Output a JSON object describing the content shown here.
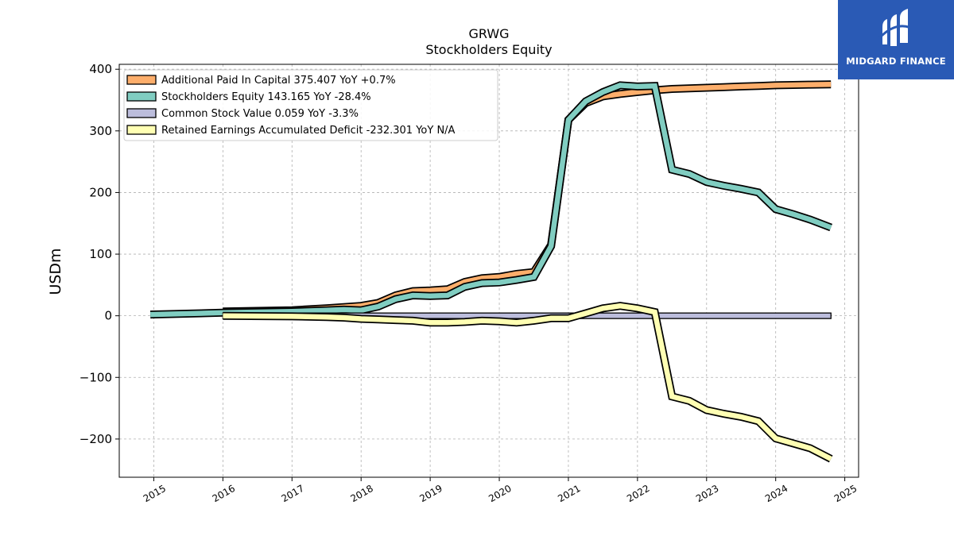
{
  "brand": {
    "name": "MIDGARD FINANCE"
  },
  "chart_data": {
    "type": "line",
    "title": "GRWG",
    "subtitle": "Stockholders  Equity",
    "ylabel": "USDm",
    "xlabel": "",
    "ylim": [
      -262,
      408
    ],
    "xlim": [
      2014.5,
      2025.2
    ],
    "yticks": [
      400,
      300,
      200,
      100,
      0,
      -100,
      -200
    ],
    "ytick_labels": [
      "400",
      "300",
      "200",
      "100",
      "0",
      "−100",
      "−200"
    ],
    "xticks": [
      2015,
      2016,
      2017,
      2018,
      2019,
      2020,
      2021,
      2022,
      2023,
      2024,
      2025
    ],
    "xtick_labels": [
      "2015",
      "2016",
      "2017",
      "2018",
      "2019",
      "2020",
      "2021",
      "2022",
      "2023",
      "2024",
      "2025"
    ],
    "grid": true,
    "legend_position": "top-left",
    "series": [
      {
        "name": "Additional Paid In Capital  375.407 YoY +0.7%",
        "color": "#fdae6b",
        "style": "band",
        "points": [
          [
            2016.0,
            7
          ],
          [
            2017.0,
            9
          ],
          [
            2017.5,
            12
          ],
          [
            2017.75,
            14
          ],
          [
            2018.0,
            16
          ],
          [
            2018.25,
            21
          ],
          [
            2018.5,
            33
          ],
          [
            2018.75,
            40
          ],
          [
            2019.0,
            41
          ],
          [
            2019.25,
            43
          ],
          [
            2019.5,
            55
          ],
          [
            2019.75,
            61
          ],
          [
            2020.0,
            63
          ],
          [
            2020.25,
            68
          ],
          [
            2020.5,
            71
          ],
          [
            2020.75,
            115
          ],
          [
            2021.0,
            318
          ],
          [
            2021.25,
            345
          ],
          [
            2021.5,
            356
          ],
          [
            2021.75,
            360
          ],
          [
            2022.0,
            363
          ],
          [
            2022.25,
            366
          ],
          [
            2022.5,
            368
          ],
          [
            2022.75,
            369
          ],
          [
            2023.0,
            370
          ],
          [
            2023.25,
            371
          ],
          [
            2023.5,
            372
          ],
          [
            2023.75,
            373
          ],
          [
            2024.0,
            374
          ],
          [
            2024.25,
            374.5
          ],
          [
            2024.5,
            375
          ],
          [
            2024.8,
            375.4
          ]
        ]
      },
      {
        "name": "Stockholders Equity  143.165 YoY -28.4%",
        "color": "#80cdc1",
        "style": "band",
        "points": [
          [
            2014.95,
            2
          ],
          [
            2016.0,
            5
          ],
          [
            2017.0,
            7
          ],
          [
            2017.5,
            9
          ],
          [
            2017.75,
            10
          ],
          [
            2018.0,
            9
          ],
          [
            2018.25,
            15
          ],
          [
            2018.5,
            27
          ],
          [
            2018.75,
            33
          ],
          [
            2019.0,
            32
          ],
          [
            2019.25,
            33
          ],
          [
            2019.5,
            47
          ],
          [
            2019.75,
            53
          ],
          [
            2020.0,
            54
          ],
          [
            2020.25,
            58
          ],
          [
            2020.5,
            63
          ],
          [
            2020.75,
            113
          ],
          [
            2021.0,
            318
          ],
          [
            2021.25,
            348
          ],
          [
            2021.5,
            363
          ],
          [
            2021.75,
            374
          ],
          [
            2022.0,
            372
          ],
          [
            2022.25,
            373
          ],
          [
            2022.5,
            237
          ],
          [
            2022.75,
            230
          ],
          [
            2023.0,
            217
          ],
          [
            2023.25,
            211
          ],
          [
            2023.5,
            206
          ],
          [
            2023.75,
            200
          ],
          [
            2024.0,
            173
          ],
          [
            2024.25,
            165
          ],
          [
            2024.5,
            156
          ],
          [
            2024.8,
            143.2
          ]
        ]
      },
      {
        "name": "Common Stock Value  0.059 YoY -3.3%",
        "color": "#bcbddc",
        "style": "fill",
        "points": [
          [
            2016.0,
            0.06
          ],
          [
            2024.8,
            0.059
          ]
        ]
      },
      {
        "name": "Retained Earnings Accumulated Deficit  -232.301 YoY N/A",
        "color": "#ffffb3",
        "style": "band",
        "points": [
          [
            2016.0,
            0
          ],
          [
            2017.0,
            -1
          ],
          [
            2017.5,
            -2
          ],
          [
            2017.75,
            -3
          ],
          [
            2018.0,
            -5
          ],
          [
            2018.25,
            -6
          ],
          [
            2018.5,
            -7
          ],
          [
            2018.75,
            -8
          ],
          [
            2019.0,
            -11
          ],
          [
            2019.25,
            -11
          ],
          [
            2019.5,
            -10
          ],
          [
            2019.75,
            -8
          ],
          [
            2020.0,
            -9
          ],
          [
            2020.25,
            -11
          ],
          [
            2020.5,
            -8
          ],
          [
            2020.75,
            -4
          ],
          [
            2021.0,
            -4
          ],
          [
            2021.25,
            4
          ],
          [
            2021.5,
            12
          ],
          [
            2021.75,
            16
          ],
          [
            2022.0,
            12
          ],
          [
            2022.25,
            6
          ],
          [
            2022.5,
            -131
          ],
          [
            2022.75,
            -138
          ],
          [
            2023.0,
            -153
          ],
          [
            2023.25,
            -159
          ],
          [
            2023.5,
            -164
          ],
          [
            2023.75,
            -171
          ],
          [
            2024.0,
            -199
          ],
          [
            2024.25,
            -207
          ],
          [
            2024.5,
            -215
          ],
          [
            2024.8,
            -232.3
          ]
        ]
      }
    ]
  }
}
